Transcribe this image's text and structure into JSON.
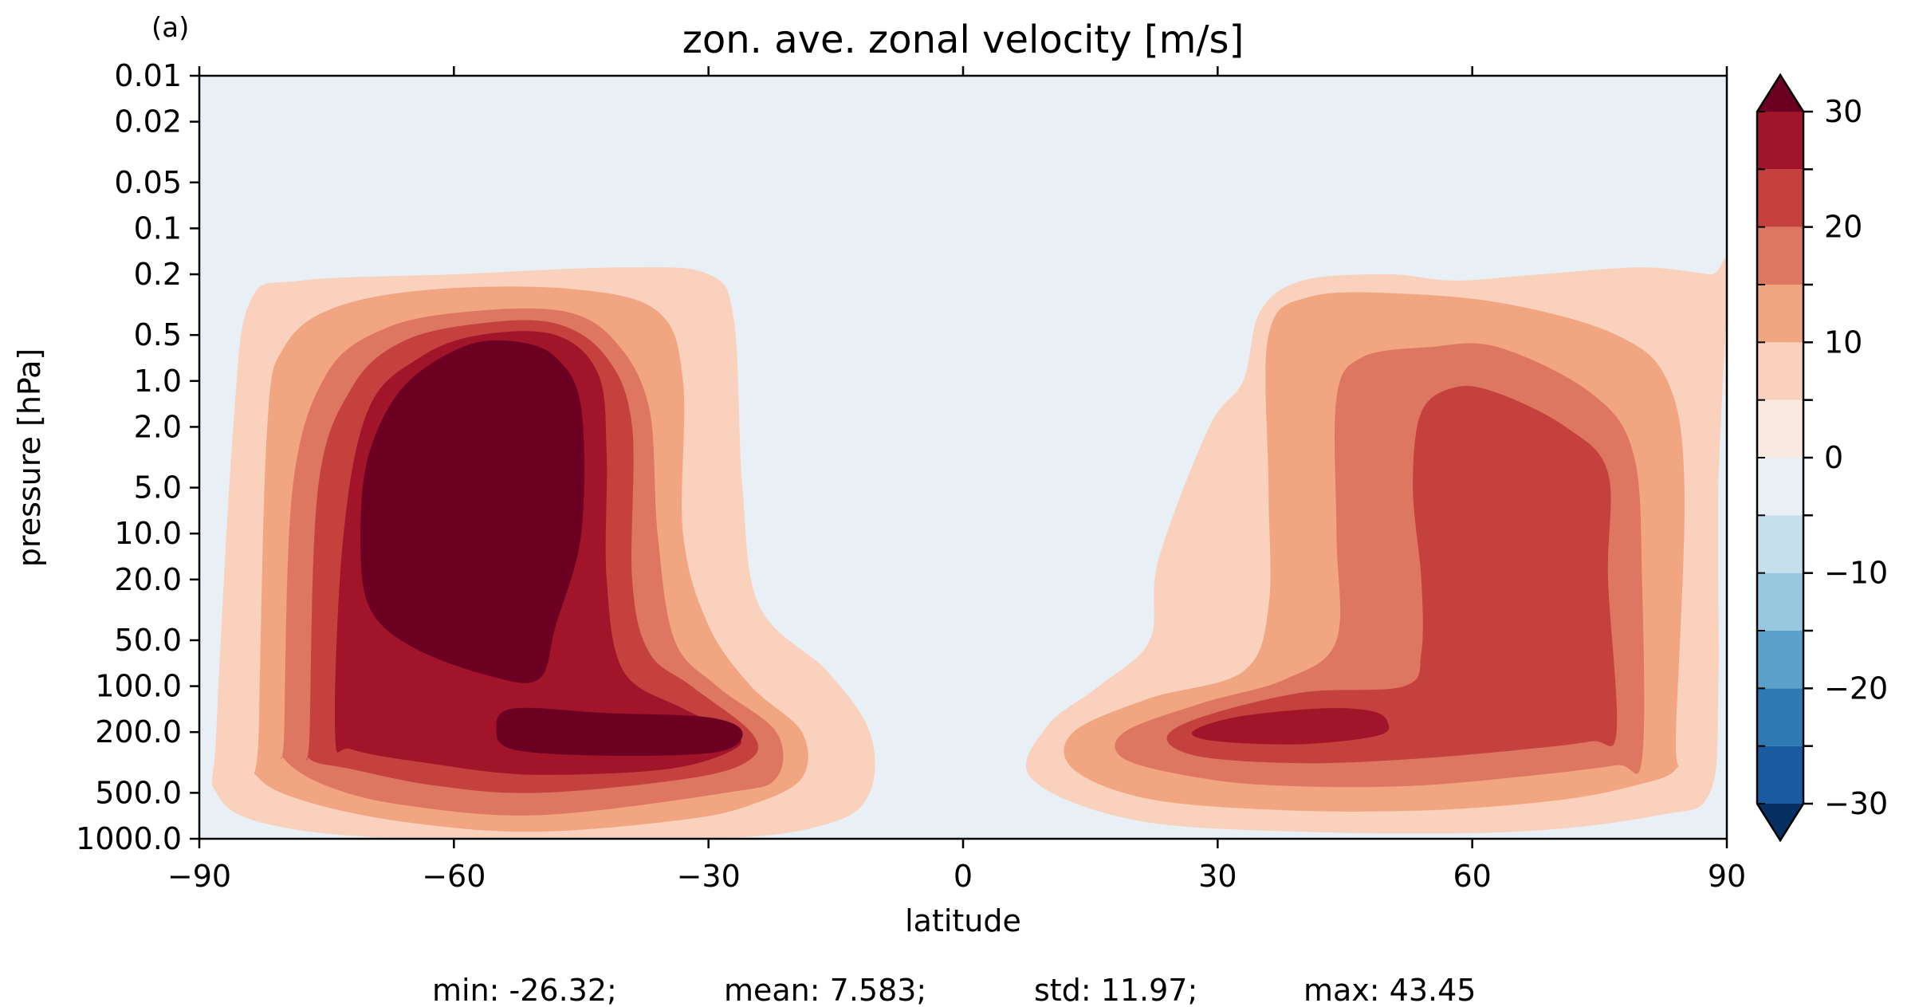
{
  "chart_data": {
    "type": "heatmap",
    "panel_label": "(a)",
    "title": "zon. ave. zonal velocity [m/s]",
    "xlabel": "latitude",
    "ylabel": "pressure [hPa]",
    "xlim": [
      -90,
      90
    ],
    "ylim": [
      1000.0,
      0.01
    ],
    "yscale": "log",
    "x_ticks": [
      -90,
      -60,
      -30,
      0,
      30,
      60,
      90
    ],
    "x_tick_labels": [
      "−90",
      "−60",
      "−30",
      "0",
      "30",
      "60",
      "90"
    ],
    "y_ticks": [
      0.01,
      0.02,
      0.05,
      0.1,
      0.2,
      0.5,
      1.0,
      2.0,
      5.0,
      10.0,
      20.0,
      50.0,
      100.0,
      200.0,
      500.0,
      1000.0
    ],
    "y_tick_labels": [
      "0.01",
      "0.02",
      "0.05",
      "0.1",
      "0.2",
      "0.5",
      "1.0",
      "2.0",
      "5.0",
      "10.0",
      "20.0",
      "50.0",
      "100.0",
      "200.0",
      "500.0",
      "1000.0"
    ],
    "grid": false,
    "colorbar": {
      "levels": [
        -30,
        -25,
        -20,
        -15,
        -10,
        -5,
        0,
        5,
        10,
        15,
        20,
        25,
        30
      ],
      "colors": [
        "#053061",
        "#1a5a9e",
        "#2f79b5",
        "#5aa1cc",
        "#98c7e0",
        "#c6dfed",
        "#e8f0f5",
        "#f9e9e0",
        "#f9d1bd",
        "#f2a581",
        "#de7762",
        "#c5413e",
        "#a1142a",
        "#6c0022"
      ],
      "tick_values": [
        -30,
        -20,
        -10,
        0,
        10,
        20,
        30
      ],
      "tick_labels": [
        "−30",
        "−20",
        "−10",
        "0",
        "10",
        "20",
        "30"
      ],
      "extend": "both"
    },
    "contour_regions": [
      {
        "level": 5,
        "polygon": [
          [
            -88,
            200
          ],
          [
            -86,
            2
          ],
          [
            -84,
            0.3
          ],
          [
            -78,
            0.22
          ],
          [
            -60,
            0.2
          ],
          [
            -40,
            0.18
          ],
          [
            -30,
            0.2
          ],
          [
            -27,
            0.4
          ],
          [
            -26,
            5
          ],
          [
            -24,
            30
          ],
          [
            -16,
            80
          ],
          [
            -11,
            200
          ],
          [
            -11,
            500
          ],
          [
            -16,
            800
          ],
          [
            -30,
            1000
          ],
          [
            -65,
            1000
          ],
          [
            -82,
            800
          ],
          [
            -88,
            500
          ]
        ]
      },
      {
        "level": 10,
        "polygon": [
          [
            -83,
            200
          ],
          [
            -82,
            2
          ],
          [
            -80,
            0.6
          ],
          [
            -74,
            0.33
          ],
          [
            -62,
            0.25
          ],
          [
            -46,
            0.25
          ],
          [
            -36,
            0.35
          ],
          [
            -33,
            1.0
          ],
          [
            -33,
            10
          ],
          [
            -30,
            40
          ],
          [
            -25,
            100
          ],
          [
            -19,
            200
          ],
          [
            -19,
            400
          ],
          [
            -25,
            600
          ],
          [
            -33,
            750
          ],
          [
            -50,
            900
          ],
          [
            -64,
            800
          ],
          [
            -76,
            600
          ],
          [
            -83,
            400
          ]
        ]
      },
      {
        "level": 15,
        "polygon": [
          [
            -80,
            200
          ],
          [
            -79,
            5
          ],
          [
            -75,
            0.9
          ],
          [
            -68,
            0.45
          ],
          [
            -58,
            0.35
          ],
          [
            -47,
            0.35
          ],
          [
            -41,
            0.55
          ],
          [
            -37,
            1.5
          ],
          [
            -36,
            10
          ],
          [
            -34,
            50
          ],
          [
            -29,
            100
          ],
          [
            -22,
            200
          ],
          [
            -22,
            400
          ],
          [
            -28,
            500
          ],
          [
            -50,
            700
          ],
          [
            -66,
            600
          ],
          [
            -75,
            450
          ],
          [
            -80,
            300
          ]
        ]
      },
      {
        "level": 20,
        "polygon": [
          [
            -77,
            200
          ],
          [
            -76,
            5
          ],
          [
            -72,
            1.1
          ],
          [
            -66,
            0.55
          ],
          [
            -57,
            0.42
          ],
          [
            -48,
            0.42
          ],
          [
            -42,
            0.7
          ],
          [
            -39,
            2
          ],
          [
            -39,
            20
          ],
          [
            -37,
            60
          ],
          [
            -32,
            100
          ],
          [
            -25,
            200
          ],
          [
            -25,
            300
          ],
          [
            -32,
            400
          ],
          [
            -50,
            500
          ],
          [
            -62,
            450
          ],
          [
            -72,
            350
          ],
          [
            -77,
            300
          ]
        ]
      },
      {
        "level": 25,
        "polygon": [
          [
            -74,
            200
          ],
          [
            -73,
            10
          ],
          [
            -70,
            1.5
          ],
          [
            -64,
            0.7
          ],
          [
            -57,
            0.5
          ],
          [
            -48,
            0.5
          ],
          [
            -43,
            0.9
          ],
          [
            -42,
            3
          ],
          [
            -42,
            20
          ],
          [
            -40,
            80
          ],
          [
            -33,
            140
          ],
          [
            -27,
            200
          ],
          [
            -27,
            260
          ],
          [
            -35,
            350
          ],
          [
            -51,
            380
          ],
          [
            -63,
            320
          ],
          [
            -72,
            260
          ]
        ]
      },
      {
        "level": 30,
        "polygon": [
          [
            -71,
            10
          ],
          [
            -70,
            3
          ],
          [
            -66,
            1.1
          ],
          [
            -59,
            0.6
          ],
          [
            -53,
            0.55
          ],
          [
            -48,
            0.7
          ],
          [
            -45,
            1.5
          ],
          [
            -45,
            10
          ],
          [
            -48,
            40
          ],
          [
            -50,
            90
          ],
          [
            -56,
            85
          ],
          [
            -65,
            55
          ],
          [
            -70,
            30
          ]
        ]
      },
      {
        "level": 30,
        "polygon": [
          [
            -53,
            140
          ],
          [
            -42,
            150
          ],
          [
            -30,
            160
          ],
          [
            -26,
            200
          ],
          [
            -29,
            270
          ],
          [
            -42,
            285
          ],
          [
            -53,
            260
          ],
          [
            -55,
            190
          ]
        ]
      },
      {
        "level": 5,
        "polygon": [
          [
            90,
            0.2
          ],
          [
            88,
            0.2
          ],
          [
            80,
            0.18
          ],
          [
            68,
            0.2
          ],
          [
            58,
            0.22
          ],
          [
            50,
            0.2
          ],
          [
            40,
            0.22
          ],
          [
            35,
            0.35
          ],
          [
            33,
            1.0
          ],
          [
            29,
            2
          ],
          [
            23,
            15
          ],
          [
            22,
            50
          ],
          [
            16,
            100
          ],
          [
            10,
            180
          ],
          [
            8,
            400
          ],
          [
            20,
            750
          ],
          [
            40,
            900
          ],
          [
            65,
            900
          ],
          [
            82,
            700
          ],
          [
            88,
            500
          ],
          [
            89,
            100
          ],
          [
            89,
            5
          ]
        ]
      },
      {
        "level": 10,
        "polygon": [
          [
            84,
            200
          ],
          [
            85,
            5
          ],
          [
            83,
            1.0
          ],
          [
            77,
            0.5
          ],
          [
            65,
            0.32
          ],
          [
            53,
            0.27
          ],
          [
            41,
            0.28
          ],
          [
            36,
            0.5
          ],
          [
            36,
            5
          ],
          [
            36,
            30
          ],
          [
            33,
            80
          ],
          [
            22,
            120
          ],
          [
            13,
            200
          ],
          [
            13,
            350
          ],
          [
            22,
            550
          ],
          [
            38,
            650
          ],
          [
            55,
            650
          ],
          [
            70,
            560
          ],
          [
            79,
            450
          ],
          [
            84,
            350
          ]
        ]
      },
      {
        "level": 15,
        "polygon": [
          [
            80,
            300
          ],
          [
            80,
            20
          ],
          [
            79,
            3
          ],
          [
            74,
            1.2
          ],
          [
            63,
            0.6
          ],
          [
            55,
            0.6
          ],
          [
            47,
            0.7
          ],
          [
            44,
            1.3
          ],
          [
            44,
            10
          ],
          [
            44,
            50
          ],
          [
            38,
            90
          ],
          [
            28,
            130
          ],
          [
            19,
            200
          ],
          [
            19,
            300
          ],
          [
            28,
            400
          ],
          [
            38,
            450
          ],
          [
            53,
            450
          ],
          [
            68,
            380
          ],
          [
            77,
            330
          ]
        ]
      },
      {
        "level": 20,
        "polygon": [
          [
            77,
            200
          ],
          [
            76,
            20
          ],
          [
            76,
            4
          ],
          [
            71,
            2
          ],
          [
            63,
            1.2
          ],
          [
            58,
            1.1
          ],
          [
            54,
            1.6
          ],
          [
            53,
            5
          ],
          [
            54,
            20
          ],
          [
            54,
            60
          ],
          [
            52,
            100
          ],
          [
            40,
            110
          ],
          [
            28,
            160
          ],
          [
            24,
            220
          ],
          [
            28,
            290
          ],
          [
            40,
            320
          ],
          [
            53,
            300
          ],
          [
            66,
            260
          ],
          [
            74,
            230
          ]
        ]
      },
      {
        "level": 25,
        "polygon": [
          [
            32,
            160
          ],
          [
            42,
            140
          ],
          [
            48,
            145
          ],
          [
            50,
            170
          ],
          [
            49,
            210
          ],
          [
            40,
            240
          ],
          [
            30,
            230
          ],
          [
            27,
            200
          ]
        ]
      }
    ]
  },
  "stats_line": {
    "min": "min: -26.32;",
    "mean": "mean: 7.583;",
    "std": "std: 11.97;",
    "max": "max: 43.45"
  }
}
